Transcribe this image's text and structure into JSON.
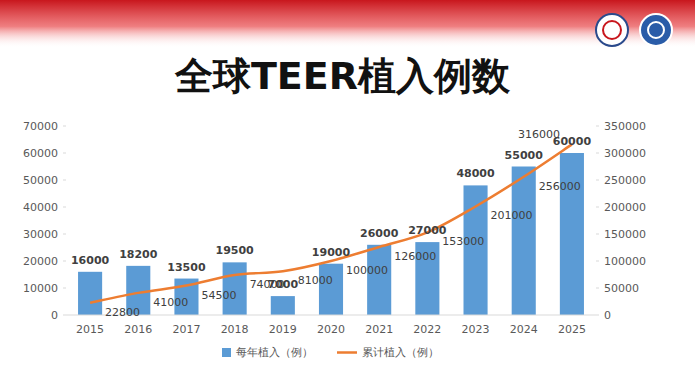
{
  "chart_data": {
    "type": "bar",
    "title": "全球TEER植入例数",
    "categories": [
      "2015",
      "2016",
      "2017",
      "2018",
      "2019",
      "2020",
      "2021",
      "2022",
      "2023",
      "2024",
      "2025"
    ],
    "series": [
      {
        "name": "每年植入（例）",
        "type": "bar",
        "color": "#5b9bd5",
        "values": [
          16000,
          18200,
          13500,
          19500,
          7000,
          19000,
          26000,
          27000,
          48000,
          55000,
          60000
        ]
      },
      {
        "name": "累计植入（例）",
        "type": "line",
        "color": "#ed7d31",
        "axis": "y2",
        "line_style": "smooth",
        "values": [
          22800,
          41000,
          54500,
          74000,
          81000,
          100000,
          126000,
          153000,
          201000,
          256000,
          316000
        ]
      }
    ],
    "ylim": [
      0,
      70000
    ],
    "yticks": [
      0,
      10000,
      20000,
      30000,
      40000,
      50000,
      60000,
      70000
    ],
    "y2lim": [
      0,
      350000
    ],
    "y2ticks": [
      0,
      50000,
      100000,
      150000,
      200000,
      250000,
      300000,
      350000
    ],
    "grid": false,
    "legend": "bottom",
    "data_labels": true
  }
}
